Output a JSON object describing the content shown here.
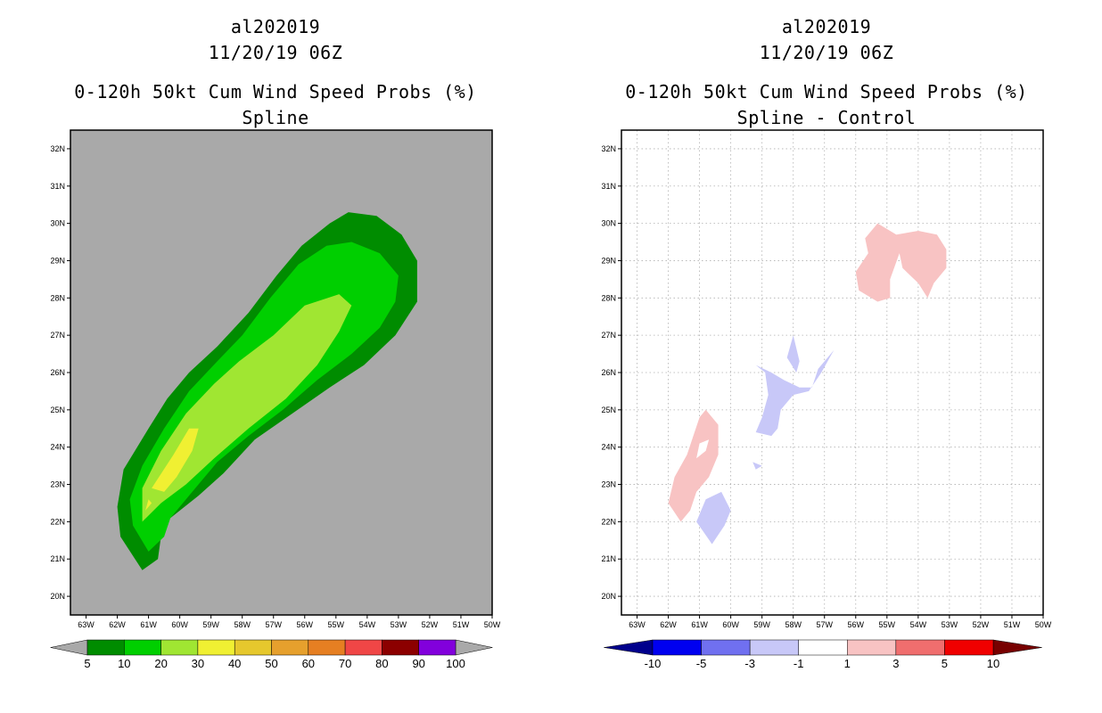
{
  "panels": [
    {
      "storm": "al202019",
      "time": "11/20/19 06Z",
      "product": "0-120h 50kt Cum Wind Speed Probs (%)",
      "subtitle": "Spline"
    },
    {
      "storm": "al202019",
      "time": "11/20/19 06Z",
      "product": "0-120h 50kt Cum Wind Speed Probs (%)",
      "subtitle": "Spline - Control"
    }
  ],
  "chart_data": [
    {
      "type": "contour-map",
      "title": "0-120h 50kt Cum Wind Speed Probs (%)",
      "subtitle": "Spline",
      "background": "#a9a9a9",
      "grid": false,
      "x_ticks": [
        "63W",
        "62W",
        "61W",
        "60W",
        "59W",
        "58W",
        "57W",
        "56W",
        "55W",
        "54W",
        "53W",
        "52W",
        "51W",
        "50W"
      ],
      "y_ticks": [
        "20N",
        "21N",
        "22N",
        "23N",
        "24N",
        "25N",
        "26N",
        "27N",
        "28N",
        "29N",
        "30N",
        "31N",
        "32N"
      ],
      "xlim_deg_west": [
        63.5,
        50
      ],
      "ylim_deg_north": [
        19.5,
        32.5
      ],
      "colorbar": {
        "labels": [
          "5",
          "10",
          "20",
          "30",
          "40",
          "50",
          "60",
          "70",
          "80",
          "90",
          "100"
        ],
        "colors": [
          "#008c00",
          "#00cf00",
          "#a0e632",
          "#f0f032",
          "#e6c82d",
          "#e6a02d",
          "#e67f22",
          "#f04646",
          "#8c0000",
          "#8200dc"
        ],
        "end_colors": [
          "#a9a9a9",
          "#a9a9a9"
        ]
      },
      "contours": [
        {
          "level": "5-10",
          "color": "#008c00",
          "points": [
            [
              61.2,
              20.7
            ],
            [
              61.9,
              21.6
            ],
            [
              62.0,
              22.4
            ],
            [
              61.8,
              23.4
            ],
            [
              61.0,
              24.5
            ],
            [
              60.4,
              25.3
            ],
            [
              59.7,
              26.0
            ],
            [
              58.8,
              26.7
            ],
            [
              57.8,
              27.6
            ],
            [
              56.9,
              28.6
            ],
            [
              56.1,
              29.4
            ],
            [
              55.2,
              30.0
            ],
            [
              54.6,
              30.3
            ],
            [
              53.7,
              30.2
            ],
            [
              52.9,
              29.7
            ],
            [
              52.4,
              29.0
            ],
            [
              52.4,
              27.9
            ],
            [
              53.1,
              27.0
            ],
            [
              54.1,
              26.2
            ],
            [
              55.2,
              25.6
            ],
            [
              56.4,
              24.9
            ],
            [
              57.6,
              24.2
            ],
            [
              58.6,
              23.3
            ],
            [
              59.4,
              22.7
            ],
            [
              60.3,
              22.1
            ],
            [
              60.6,
              21.6
            ],
            [
              60.7,
              21.0
            ]
          ]
        },
        {
          "level": "10-20",
          "color": "#00cf00",
          "points": [
            [
              61.0,
              21.2
            ],
            [
              61.5,
              21.9
            ],
            [
              61.6,
              22.6
            ],
            [
              61.2,
              23.5
            ],
            [
              60.5,
              24.5
            ],
            [
              59.7,
              25.5
            ],
            [
              58.8,
              26.3
            ],
            [
              58.0,
              27.0
            ],
            [
              57.1,
              28.0
            ],
            [
              56.2,
              28.9
            ],
            [
              55.3,
              29.4
            ],
            [
              54.5,
              29.5
            ],
            [
              53.6,
              29.2
            ],
            [
              53.0,
              28.6
            ],
            [
              53.1,
              27.9
            ],
            [
              53.6,
              27.2
            ],
            [
              54.5,
              26.5
            ],
            [
              55.6,
              25.8
            ],
            [
              56.7,
              25.0
            ],
            [
              57.8,
              24.3
            ],
            [
              58.8,
              23.6
            ],
            [
              59.6,
              22.8
            ],
            [
              60.3,
              22.1
            ],
            [
              60.5,
              21.6
            ]
          ]
        },
        {
          "level": "20-30",
          "color": "#a0e632",
          "points": [
            [
              61.2,
              22.0
            ],
            [
              61.2,
              22.9
            ],
            [
              60.6,
              23.9
            ],
            [
              59.8,
              24.9
            ],
            [
              58.9,
              25.7
            ],
            [
              58.1,
              26.3
            ],
            [
              57.0,
              27.0
            ],
            [
              56.0,
              27.8
            ],
            [
              54.9,
              28.1
            ],
            [
              54.5,
              27.8
            ],
            [
              54.9,
              27.1
            ],
            [
              55.6,
              26.2
            ],
            [
              56.6,
              25.3
            ],
            [
              57.8,
              24.5
            ],
            [
              58.9,
              23.7
            ],
            [
              59.8,
              23.0
            ],
            [
              60.6,
              22.5
            ]
          ]
        },
        {
          "level": "30-40",
          "color": "#f0f032",
          "points": [
            [
              60.9,
              22.9
            ],
            [
              60.2,
              23.8
            ],
            [
              59.7,
              24.5
            ],
            [
              59.4,
              24.5
            ],
            [
              59.6,
              23.9
            ],
            [
              60.1,
              23.2
            ],
            [
              60.5,
              22.8
            ]
          ]
        },
        {
          "level": "30-40",
          "color": "#f0f032",
          "points": [
            [
              61.1,
              22.3
            ],
            [
              60.9,
              22.5
            ],
            [
              61.0,
              22.6
            ]
          ]
        }
      ]
    },
    {
      "type": "contour-map",
      "title": "0-120h 50kt Cum Wind Speed Probs (%)",
      "subtitle": "Spline - Control",
      "background": "#ffffff",
      "grid": true,
      "x_ticks": [
        "63W",
        "62W",
        "61W",
        "60W",
        "59W",
        "58W",
        "57W",
        "56W",
        "55W",
        "54W",
        "53W",
        "52W",
        "51W",
        "50W"
      ],
      "y_ticks": [
        "20N",
        "21N",
        "22N",
        "23N",
        "24N",
        "25N",
        "26N",
        "27N",
        "28N",
        "29N",
        "30N",
        "31N",
        "32N"
      ],
      "xlim_deg_west": [
        63.5,
        50
      ],
      "ylim_deg_north": [
        19.5,
        32.5
      ],
      "colorbar": {
        "labels": [
          "-10",
          "-5",
          "-3",
          "-1",
          "1",
          "3",
          "5",
          "10"
        ],
        "colors": [
          "#0000f0",
          "#7070f0",
          "#c8c8f8",
          "#ffffff",
          "#f8c3c3",
          "#f06e6e",
          "#f00000"
        ],
        "end_colors": [
          "#00008c",
          "#780000"
        ]
      },
      "contours": [
        {
          "level": "1-3",
          "color": "#f8c3c3",
          "points": [
            [
              61.6,
              22.0
            ],
            [
              62.0,
              22.5
            ],
            [
              61.8,
              23.2
            ],
            [
              61.4,
              23.8
            ],
            [
              61.2,
              24.3
            ],
            [
              61.0,
              24.8
            ],
            [
              60.8,
              25.0
            ],
            [
              60.4,
              24.6
            ],
            [
              60.4,
              23.8
            ],
            [
              60.7,
              23.2
            ],
            [
              61.1,
              22.8
            ],
            [
              61.3,
              22.3
            ]
          ]
        },
        {
          "level": "1-3",
          "color": "#f8c3c3",
          "points": [
            [
              55.3,
              27.9
            ],
            [
              55.9,
              28.2
            ],
            [
              56.0,
              28.7
            ],
            [
              55.6,
              29.2
            ],
            [
              55.7,
              29.6
            ],
            [
              55.3,
              30.0
            ],
            [
              54.7,
              29.7
            ],
            [
              54.0,
              29.8
            ],
            [
              53.4,
              29.7
            ],
            [
              53.1,
              29.3
            ],
            [
              53.1,
              28.8
            ],
            [
              53.5,
              28.4
            ],
            [
              53.7,
              28.0
            ],
            [
              54.0,
              28.4
            ],
            [
              54.5,
              28.8
            ],
            [
              54.6,
              29.2
            ],
            [
              54.9,
              28.5
            ],
            [
              54.9,
              28.0
            ]
          ]
        }
      ],
      "holes": [
        {
          "points": [
            [
              61.1,
              23.7
            ],
            [
              60.8,
              23.9
            ],
            [
              60.7,
              24.2
            ],
            [
              61.0,
              24.1
            ]
          ]
        }
      ],
      "negative_contours": [
        {
          "level": "-3 to -1",
          "color": "#c8c8f8",
          "points": [
            [
              60.6,
              21.4
            ],
            [
              61.1,
              22.0
            ],
            [
              60.8,
              22.6
            ],
            [
              60.3,
              22.8
            ],
            [
              60.0,
              22.3
            ],
            [
              60.2,
              21.9
            ]
          ]
        },
        {
          "level": "-3 to -1",
          "color": "#c8c8f8",
          "points": [
            [
              59.2,
              24.4
            ],
            [
              59.0,
              24.8
            ],
            [
              58.8,
              25.4
            ],
            [
              58.9,
              26.0
            ],
            [
              59.2,
              26.2
            ],
            [
              58.7,
              26.0
            ],
            [
              58.3,
              25.8
            ],
            [
              57.8,
              25.6
            ],
            [
              57.4,
              25.6
            ],
            [
              57.2,
              26.1
            ],
            [
              56.8,
              26.5
            ],
            [
              56.7,
              26.6
            ],
            [
              57.1,
              26.0
            ],
            [
              57.5,
              25.5
            ],
            [
              58.0,
              25.4
            ],
            [
              58.4,
              25.0
            ],
            [
              58.5,
              24.5
            ],
            [
              58.7,
              24.3
            ]
          ]
        },
        {
          "level": "-3 to -1",
          "color": "#c8c8f8",
          "points": [
            [
              58.0,
              27.0
            ],
            [
              57.8,
              26.3
            ],
            [
              57.9,
              26.0
            ],
            [
              58.2,
              26.4
            ]
          ]
        },
        {
          "level": "-3 to -1",
          "color": "#c8c8f8",
          "points": [
            [
              59.3,
              23.6
            ],
            [
              59.0,
              23.5
            ],
            [
              59.2,
              23.4
            ]
          ]
        }
      ]
    }
  ]
}
